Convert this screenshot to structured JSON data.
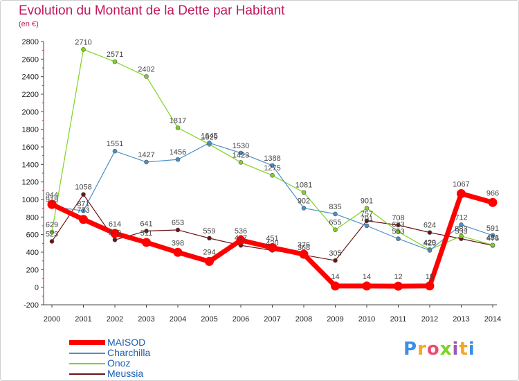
{
  "title": "Evolution du Montant de la Dette par Habitant",
  "unit": "(en €)",
  "logo": "Proxiti",
  "colors": {
    "title": "#c2185b",
    "legend_text": "#1a5fb4"
  },
  "chart_data": {
    "type": "line",
    "x": [
      2000,
      2001,
      2002,
      2003,
      2004,
      2005,
      2006,
      2007,
      2008,
      2009,
      2010,
      2011,
      2012,
      2013,
      2014
    ],
    "ylim": [
      -200,
      2800
    ],
    "yticks": [
      -200,
      0,
      200,
      400,
      600,
      800,
      1000,
      1200,
      1400,
      1600,
      1800,
      2000,
      2200,
      2400,
      2600,
      2800
    ],
    "grid": false,
    "legend": "bottom-left",
    "series": [
      {
        "name": "Meussia",
        "color": "#6b1414",
        "values": [
          523,
          1058,
          540,
          641,
          653,
          559,
          477,
          420,
          368,
          305,
          757,
          708,
          624,
          553,
          476
        ]
      },
      {
        "name": "Onoz",
        "color": "#7ed321",
        "values": [
          629,
          2710,
          2571,
          2402,
          1817,
          1629,
          1423,
          1275,
          1081,
          655,
          901,
          633,
          429,
          583,
          481
        ]
      },
      {
        "name": "Charchilla",
        "color": "#4a90c8",
        "values": [
          918,
          871,
          1551,
          1427,
          1456,
          1645,
          1530,
          1388,
          902,
          835,
          701,
          553,
          420,
          712,
          591
        ]
      },
      {
        "name": "MAISOD",
        "color": "#ff0000",
        "values": [
          944,
          773,
          614,
          511,
          398,
          294,
          536,
          451,
          376,
          14,
          14,
          12,
          15,
          1067,
          966
        ]
      }
    ]
  }
}
